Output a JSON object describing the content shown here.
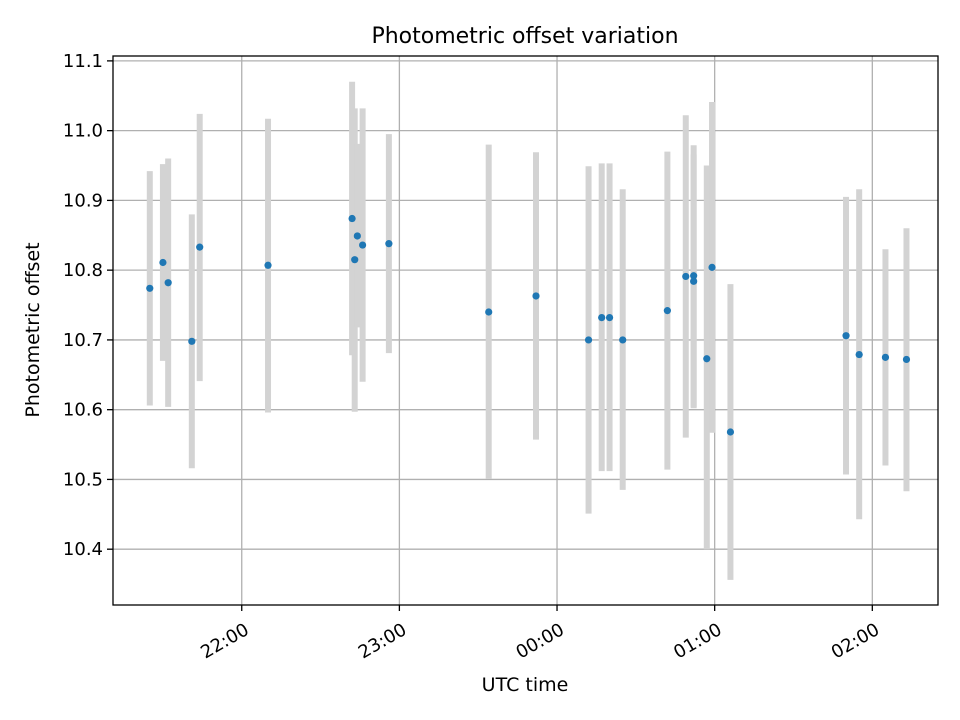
{
  "chart_data": {
    "type": "scatter",
    "title": "Photometric offset variation",
    "xlabel": "UTC time",
    "ylabel": "Photometric offset",
    "x_axis": {
      "scale": "time",
      "range": [
        "21:11",
        "02:25"
      ],
      "ticks": [
        "22:00",
        "23:00",
        "00:00",
        "01:00",
        "02:00"
      ]
    },
    "y_axis": {
      "range": [
        10.32,
        11.107
      ],
      "ticks": [
        "10.4",
        "10.5",
        "10.6",
        "10.7",
        "10.8",
        "10.9",
        "11.0",
        "11.1"
      ]
    },
    "grid": true,
    "series": [
      {
        "marker_color": "#1f77b4",
        "errorbar_color": "#d3d3d3",
        "points": [
          {
            "x": "21:25",
            "y": 10.774,
            "ylow": 10.606,
            "yhigh": 10.942
          },
          {
            "x": "21:30",
            "y": 10.811,
            "ylow": 10.67,
            "yhigh": 10.952
          },
          {
            "x": "21:32",
            "y": 10.782,
            "ylow": 10.604,
            "yhigh": 10.96
          },
          {
            "x": "21:41",
            "y": 10.698,
            "ylow": 10.516,
            "yhigh": 10.88
          },
          {
            "x": "21:44",
            "y": 10.833,
            "ylow": 10.641,
            "yhigh": 11.024
          },
          {
            "x": "22:10",
            "y": 10.807,
            "ylow": 10.596,
            "yhigh": 11.017
          },
          {
            "x": "22:42",
            "y": 10.874,
            "ylow": 10.678,
            "yhigh": 11.07
          },
          {
            "x": "22:43",
            "y": 10.815,
            "ylow": 10.597,
            "yhigh": 11.032
          },
          {
            "x": "22:44",
            "y": 10.849,
            "ylow": 10.718,
            "yhigh": 10.981
          },
          {
            "x": "22:46",
            "y": 10.836,
            "ylow": 10.64,
            "yhigh": 11.032
          },
          {
            "x": "22:56",
            "y": 10.838,
            "ylow": 10.681,
            "yhigh": 10.995
          },
          {
            "x": "23:34",
            "y": 10.74,
            "ylow": 10.501,
            "yhigh": 10.98
          },
          {
            "x": "23:52",
            "y": 10.763,
            "ylow": 10.557,
            "yhigh": 10.969
          },
          {
            "x": "00:12",
            "y": 10.7,
            "ylow": 10.451,
            "yhigh": 10.949
          },
          {
            "x": "00:17",
            "y": 10.732,
            "ylow": 10.512,
            "yhigh": 10.953
          },
          {
            "x": "00:20",
            "y": 10.732,
            "ylow": 10.512,
            "yhigh": 10.953
          },
          {
            "x": "00:25",
            "y": 10.7,
            "ylow": 10.485,
            "yhigh": 10.916
          },
          {
            "x": "00:42",
            "y": 10.742,
            "ylow": 10.514,
            "yhigh": 10.97
          },
          {
            "x": "00:49",
            "y": 10.791,
            "ylow": 10.56,
            "yhigh": 11.022
          },
          {
            "x": "00:52",
            "y": 10.792,
            "ylow": 10.604,
            "yhigh": 10.979
          },
          {
            "x": "00:52",
            "y": 10.784,
            "ylow": 10.602,
            "yhigh": 10.966
          },
          {
            "x": "00:57",
            "y": 10.673,
            "ylow": 10.4,
            "yhigh": 10.95
          },
          {
            "x": "00:59",
            "y": 10.804,
            "ylow": 10.567,
            "yhigh": 11.041
          },
          {
            "x": "01:06",
            "y": 10.568,
            "ylow": 10.356,
            "yhigh": 10.78
          },
          {
            "x": "01:50",
            "y": 10.706,
            "ylow": 10.507,
            "yhigh": 10.905
          },
          {
            "x": "01:55",
            "y": 10.679,
            "ylow": 10.443,
            "yhigh": 10.916
          },
          {
            "x": "02:05",
            "y": 10.675,
            "ylow": 10.52,
            "yhigh": 10.83
          },
          {
            "x": "02:13",
            "y": 10.672,
            "ylow": 10.483,
            "yhigh": 10.86
          }
        ]
      }
    ]
  }
}
